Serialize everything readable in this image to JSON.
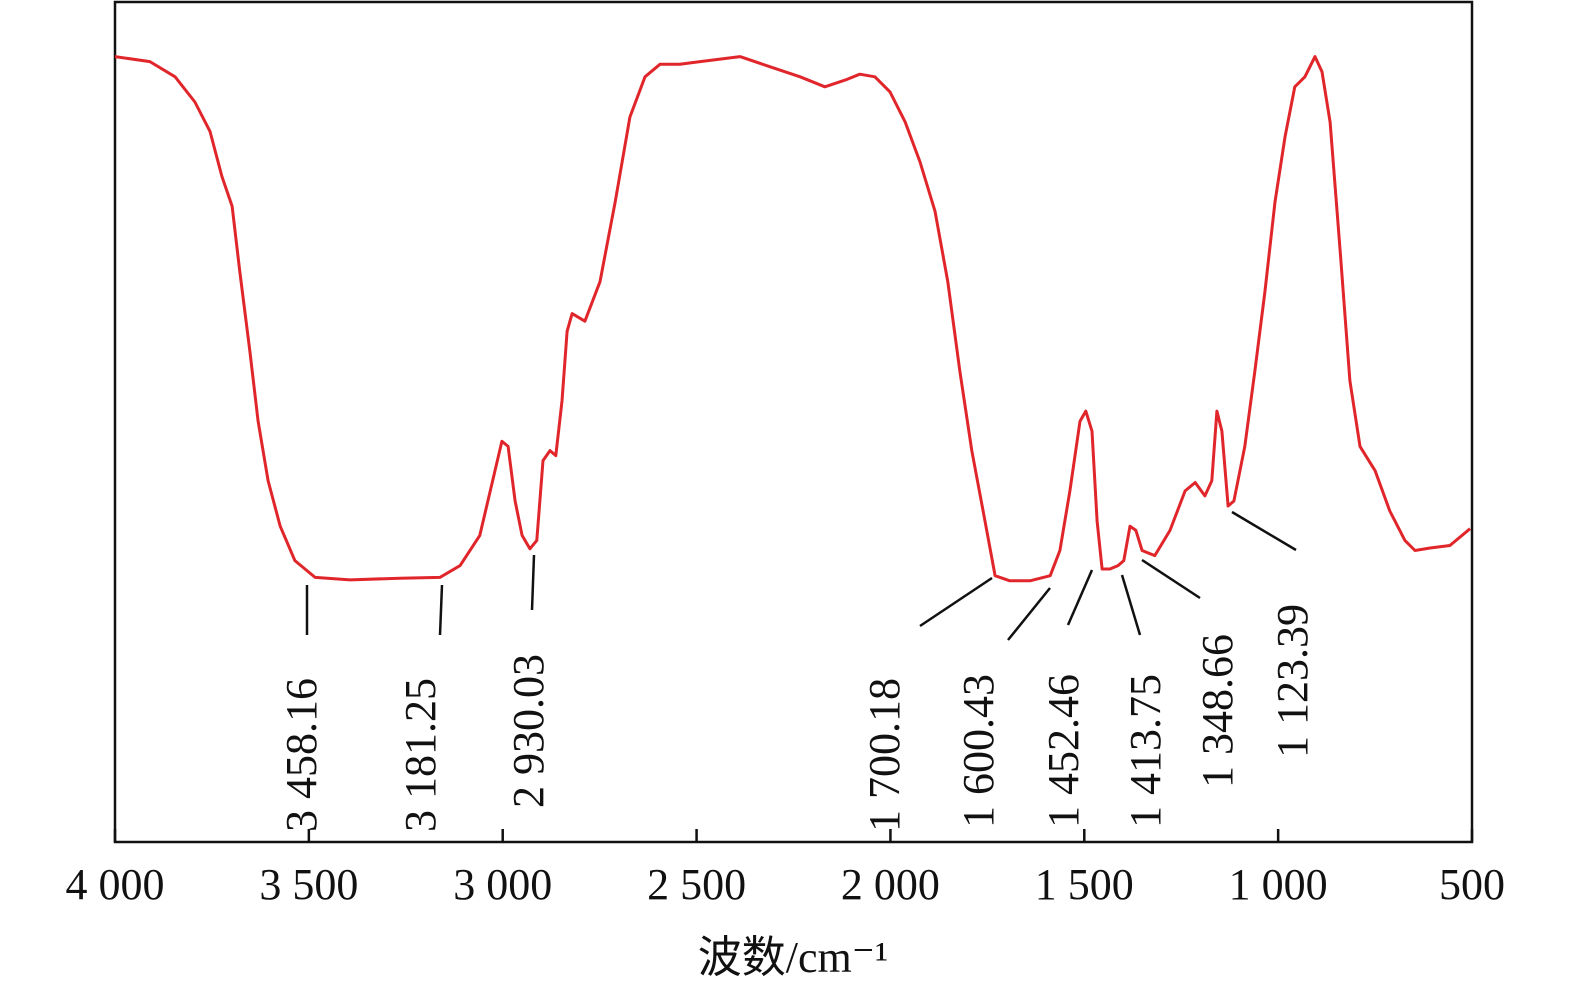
{
  "chart_data": {
    "type": "line",
    "x_label": "波数/cm⁻¹",
    "xlim": [
      4000,
      500
    ],
    "ylim": [
      0,
      100
    ],
    "xticks": [
      {
        "value": 4000,
        "label": "4 000"
      },
      {
        "value": 3500,
        "label": "3 500"
      },
      {
        "value": 3000,
        "label": "3 000"
      },
      {
        "value": 2500,
        "label": "2 500"
      },
      {
        "value": 2000,
        "label": "2 000"
      },
      {
        "value": 1500,
        "label": "1 500"
      },
      {
        "value": 1000,
        "label": "1 000"
      },
      500
    ],
    "series": [
      {
        "color": "#e0262b",
        "x": [
          4000,
          3910,
          3845,
          3794,
          3755,
          3724,
          3698,
          3678,
          3652,
          3631,
          3605,
          3574,
          3536,
          3484,
          3394,
          3265,
          3162,
          3110,
          3059,
          3020,
          3002,
          2986,
          2968,
          2950,
          2930,
          2912,
          2896,
          2878,
          2863,
          2847,
          2834,
          2821,
          2788,
          2749,
          2710,
          2672,
          2633,
          2594,
          2543,
          2491,
          2388,
          2311,
          2233,
          2169,
          2117,
          2079,
          2040,
          2001,
          1962,
          1924,
          1885,
          1852,
          1821,
          1790,
          1756,
          1730,
          1692,
          1640,
          1588,
          1563,
          1537,
          1511,
          1496,
          1480,
          1467,
          1454,
          1434,
          1413,
          1398,
          1382,
          1367,
          1351,
          1318,
          1279,
          1240,
          1214,
          1189,
          1171,
          1158,
          1145,
          1129,
          1114,
          1086,
          1060,
          1034,
          1008,
          982,
          957,
          931,
          905,
          887,
          866,
          840,
          815,
          789,
          750,
          712,
          673,
          647,
          608,
          557,
          505
        ],
        "values": [
          93.5,
          92.9,
          91.1,
          88.1,
          84.6,
          79.2,
          75.7,
          67.9,
          58.4,
          50.1,
          43.0,
          37.6,
          33.5,
          31.5,
          31.2,
          31.4,
          31.5,
          32.9,
          36.5,
          44.2,
          47.7,
          47.1,
          40.6,
          36.5,
          34.9,
          35.9,
          45.4,
          46.6,
          46.0,
          52.5,
          60.8,
          62.9,
          62.0,
          66.7,
          76.2,
          86.3,
          91.1,
          92.6,
          92.6,
          92.9,
          93.5,
          92.3,
          91.1,
          89.9,
          90.7,
          91.4,
          91.1,
          89.3,
          85.7,
          81.0,
          75.1,
          66.7,
          56.1,
          46.6,
          38.2,
          31.7,
          31.1,
          31.1,
          31.7,
          34.7,
          41.8,
          50.1,
          51.3,
          48.9,
          38.2,
          32.5,
          32.5,
          32.9,
          33.5,
          37.6,
          37.1,
          34.7,
          34.1,
          37.1,
          41.8,
          42.8,
          41.2,
          43.0,
          51.3,
          48.9,
          40.0,
          40.6,
          47.1,
          56.1,
          65.6,
          76.2,
          84.0,
          89.9,
          91.1,
          93.5,
          91.7,
          85.7,
          70.3,
          54.9,
          47.1,
          44.2,
          39.4,
          35.9,
          34.7,
          35.0,
          35.3,
          37.3
        ]
      }
    ],
    "annotations": [
      "3 458.16",
      "3 181.25",
      "2 930.03",
      "1 700.18",
      "1 600.43",
      "1 452.46",
      "1 413.75",
      "1 348.66",
      "1 123.39"
    ]
  }
}
